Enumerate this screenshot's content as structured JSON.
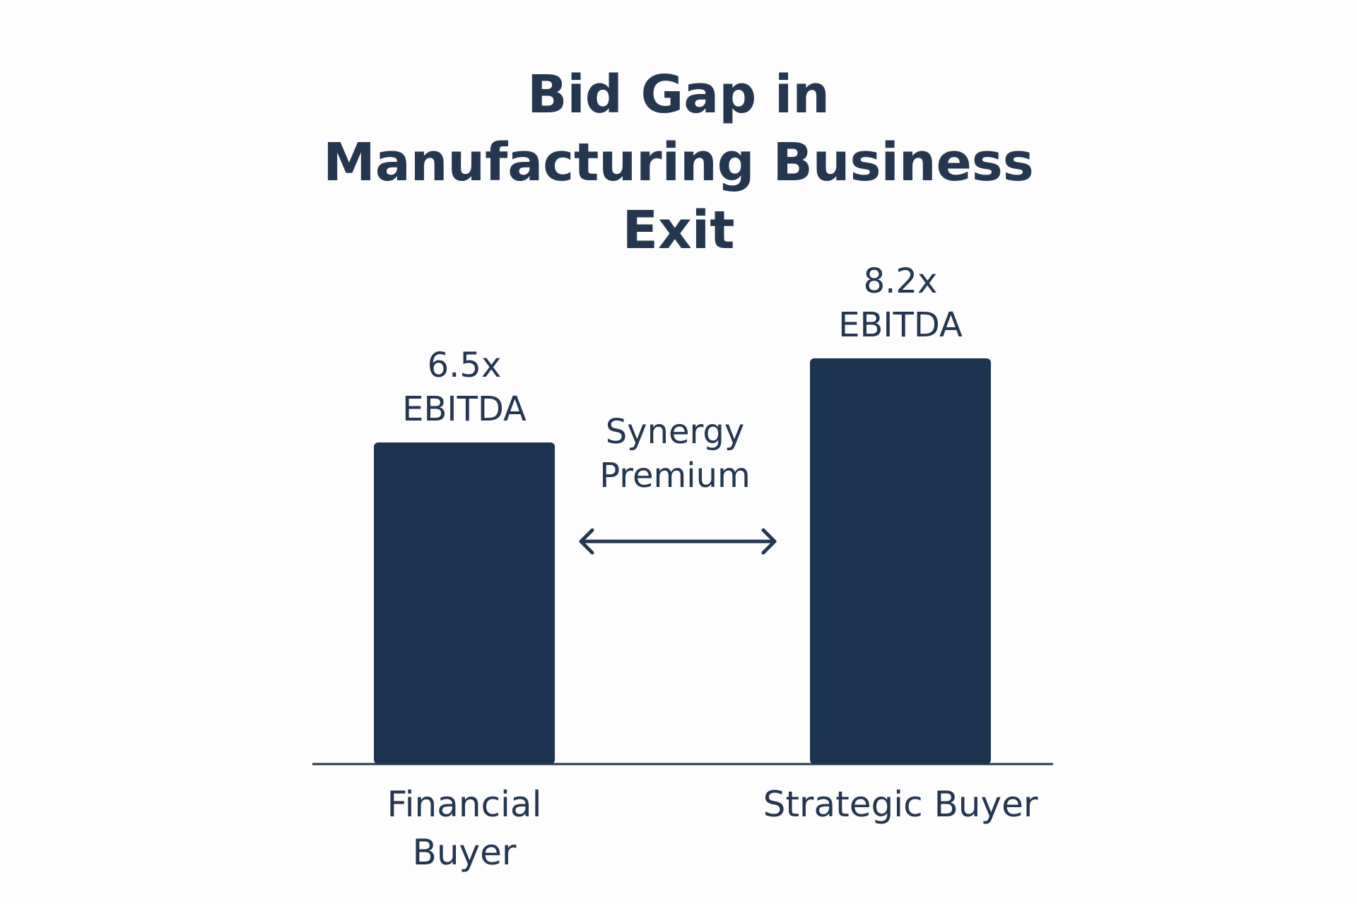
{
  "chart_data": {
    "type": "bar",
    "title": "Bid Gap in Manufacturing Business Exit",
    "categories": [
      "Financial Buyer",
      "Strategic Buyer"
    ],
    "values": [
      6.5,
      8.2
    ],
    "value_labels": [
      "6.5x EBITDA",
      "8.2x EBITDA"
    ],
    "color": "#1d3450",
    "annotation": "Synergy Premium"
  }
}
